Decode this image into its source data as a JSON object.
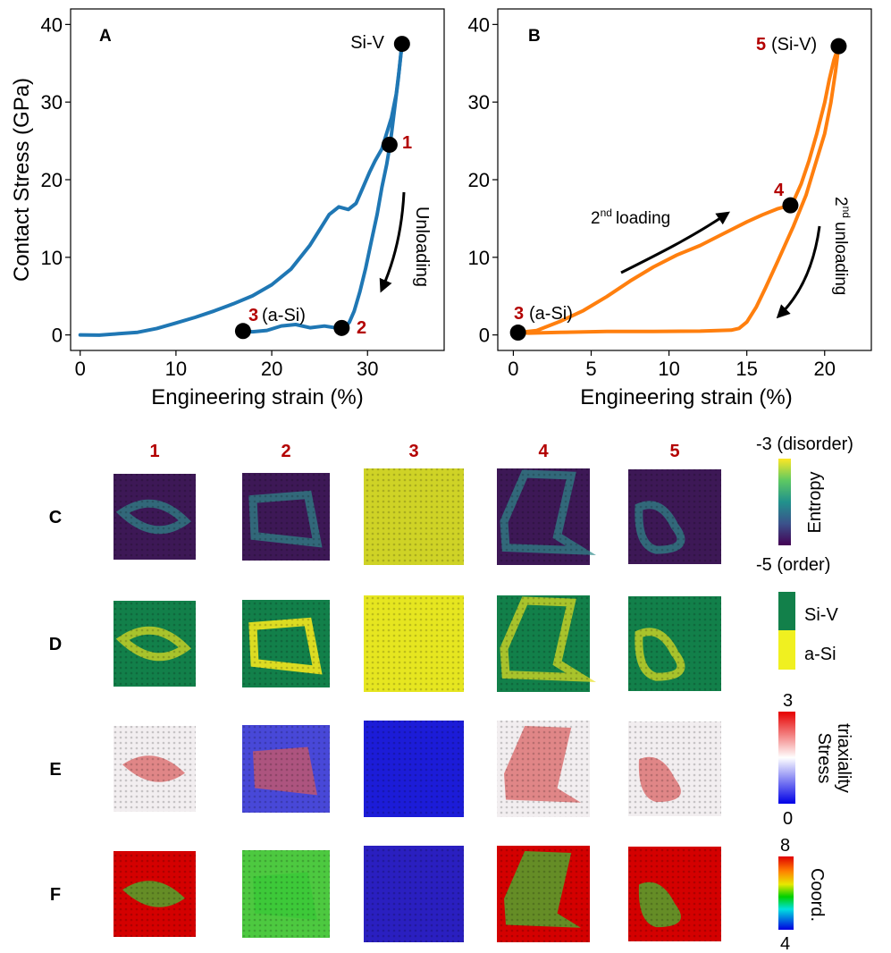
{
  "chart_data": [
    {
      "panel": "A",
      "type": "line",
      "xlabel": "Engineering strain (%)",
      "ylabel": "Contact Stress (GPa)",
      "xlim": [
        -1,
        38
      ],
      "ylim": [
        -2,
        42
      ],
      "xticks": [
        "0",
        "10",
        "20",
        "30"
      ],
      "xtick_values": [
        0,
        10,
        20,
        30
      ],
      "yticks": [
        "0",
        "10",
        "20",
        "30",
        "40"
      ],
      "ytick_values": [
        0,
        10,
        20,
        30,
        40
      ],
      "color": "#1f77b4",
      "series": [
        {
          "name": "loading",
          "x": [
            0,
            2,
            4,
            6,
            8,
            10,
            12,
            14,
            16,
            18,
            20,
            22,
            24,
            25,
            26,
            27,
            28,
            28.8,
            29.5,
            30.2,
            30.8,
            31.5,
            32,
            32.5,
            33,
            33.3,
            33.6
          ],
          "y": [
            0,
            0,
            0.2,
            0.4,
            0.9,
            1.6,
            2.3,
            3.1,
            4.0,
            5.0,
            6.4,
            8.4,
            11.5,
            13.5,
            15.5,
            16.5,
            16.2,
            17,
            19,
            21,
            22.5,
            24,
            26,
            28,
            31,
            34,
            37.5
          ]
        },
        {
          "name": "unloading",
          "x": [
            33.6,
            33.2,
            32.8,
            32.4,
            32.0,
            31.5,
            31.0,
            30.4,
            29.8,
            29.2,
            28.6,
            28.1,
            27.6,
            27.3,
            27.0,
            25.5,
            24.0,
            22.5,
            21.0,
            19.5,
            18.0,
            17.0
          ],
          "y": [
            37.5,
            33.0,
            29.0,
            25.0,
            22.0,
            19.0,
            15.5,
            12.0,
            8.5,
            5.5,
            3.0,
            1.6,
            0.9,
            0.9,
            0.9,
            1.2,
            1.0,
            1.4,
            1.2,
            0.6,
            0.4,
            0.5
          ]
        }
      ],
      "markers": [
        {
          "x": 33.6,
          "y": 37.5,
          "num": "",
          "label": "Si-V"
        },
        {
          "x": 32.3,
          "y": 24.5,
          "num": "1",
          "label": ""
        },
        {
          "x": 27.3,
          "y": 0.9,
          "num": "2",
          "label": ""
        },
        {
          "x": 17.0,
          "y": 0.5,
          "num": "3",
          "label": "(a-Si)"
        }
      ],
      "annotation": "Unloading"
    },
    {
      "panel": "B",
      "type": "line",
      "xlabel": "Engineering strain (%)",
      "ylabel": "",
      "xlim": [
        -1,
        23
      ],
      "ylim": [
        -2,
        42
      ],
      "xticks": [
        "0",
        "5",
        "10",
        "15",
        "20"
      ],
      "xtick_values": [
        0,
        5,
        10,
        15,
        20
      ],
      "yticks": [
        "0",
        "10",
        "20",
        "30",
        "40"
      ],
      "ytick_values": [
        0,
        10,
        20,
        30,
        40
      ],
      "color": "#ff7f0e",
      "series": [
        {
          "name": "2nd loading",
          "x": [
            0.3,
            1.5,
            3,
            4.5,
            6,
            7.5,
            9,
            10.5,
            12,
            13.5,
            15,
            16,
            17,
            17.5,
            18,
            18.5,
            19,
            19.5,
            20,
            20.3,
            20.6,
            20.9
          ],
          "y": [
            0.3,
            0.6,
            1.8,
            3.2,
            5.0,
            7.0,
            8.8,
            10.3,
            11.5,
            13.0,
            14.5,
            15.4,
            16.2,
            16.5,
            17.2,
            19.5,
            22.5,
            26.0,
            30.0,
            33.0,
            35.5,
            37.2
          ]
        },
        {
          "name": "2nd unloading",
          "x": [
            20.9,
            20.7,
            20.4,
            20.0,
            19.4,
            18.8,
            18.0,
            17.0,
            16.2,
            15.6,
            15.0,
            14.5,
            14.0,
            12,
            9,
            6,
            3,
            1,
            0.3
          ],
          "y": [
            37.2,
            34.0,
            30.0,
            26.0,
            22.0,
            18.0,
            14.0,
            9.5,
            6.0,
            3.5,
            1.6,
            0.8,
            0.6,
            0.5,
            0.5,
            0.5,
            0.4,
            0.3,
            0.3
          ]
        }
      ],
      "markers": [
        {
          "x": 20.9,
          "y": 37.2,
          "num": "5",
          "label": "(Si-V)"
        },
        {
          "x": 17.8,
          "y": 16.7,
          "num": "4",
          "label": ""
        },
        {
          "x": 0.3,
          "y": 0.3,
          "num": "3",
          "label": "(a-Si)"
        }
      ],
      "annotation_loading": "loading",
      "annotation_loading_sup": "nd",
      "annotation_loading_num": "2",
      "annotation_unloading": "unloading",
      "annotation_unloading_sup": "nd",
      "annotation_unloading_num": "2"
    }
  ],
  "panel_labels": {
    "a": "A",
    "b": "B"
  },
  "snapshot_grid": {
    "columns": [
      "1",
      "2",
      "3",
      "4",
      "5"
    ],
    "rows": [
      "C",
      "D",
      "E",
      "F"
    ],
    "row_kinds": [
      "entropy",
      "phase",
      "triaxiality",
      "coord"
    ],
    "legends": {
      "entropy": {
        "top": "-3 (disorder)",
        "bottom": "-5 (order)",
        "title": "Entropy"
      },
      "phase": {
        "top": "Si-V",
        "bottom": "a-Si",
        "color_top": "#12804a",
        "color_bottom": "#f0f020"
      },
      "triaxiality": {
        "top": "3",
        "bottom": "0",
        "title_1": "Stress",
        "title_2": "triaxiality"
      },
      "coord": {
        "top": "8",
        "bottom": "4",
        "title": "Coord."
      }
    }
  },
  "colors": {
    "panel_a": "#1f77b4",
    "panel_b": "#ff7f0e",
    "accent_red": "#b30000"
  }
}
